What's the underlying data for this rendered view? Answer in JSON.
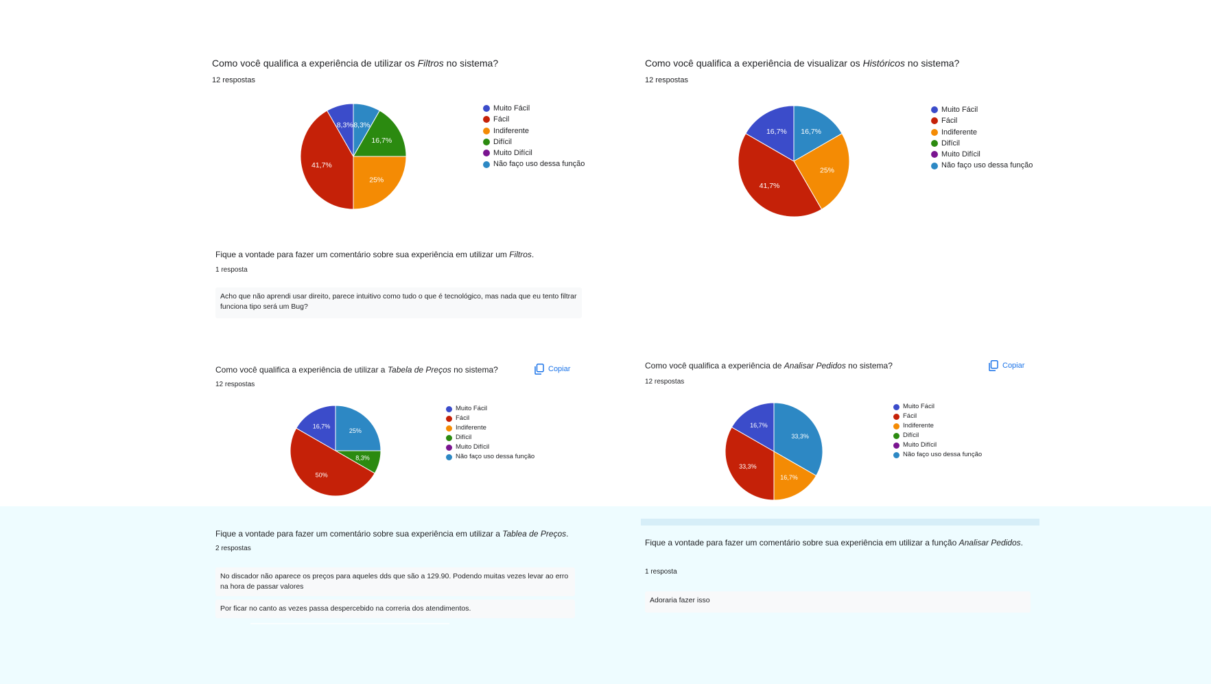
{
  "colors": {
    "muito_facil": "#3b4cca",
    "facil": "#c52108",
    "indiferente": "#f48b04",
    "dificil": "#2b8a10",
    "muito_dificil": "#7a1490",
    "nao_uso": "#2d88c4"
  },
  "legend_labels": [
    "Muito Fácil",
    "Fácil",
    "Indiferente",
    "Difícil",
    "Muito Difícil",
    "Não faço uso dessa função"
  ],
  "copy_label": "Copiar",
  "q1": {
    "pre": "Como você qualifica a experiência de utilizar os ",
    "em": "Filtros",
    "post": " no sistema?",
    "count": "12 respostas"
  },
  "q2": {
    "pre": "Como você qualifica a experiência de visualizar os ",
    "em": "Históricos",
    "post": " no sistema?",
    "count": "12 respostas"
  },
  "q3": {
    "pre": "Como você qualifica a experiência de utilizar a ",
    "em": "Tabela de Preços",
    "post": " no sistema?",
    "count": "12 respostas"
  },
  "q4": {
    "pre": "Como você qualifica a experiência de ",
    "em": "Analisar Pedidos",
    "post": " no sistema?",
    "count": "12 respostas"
  },
  "c1": {
    "pre": "Fique a vontade para fazer um comentário sobre sua experiência em utilizar um ",
    "em": "Filtros",
    "post": ".",
    "count": "1 resposta",
    "responses": [
      "Acho que não aprendi usar direito, parece intuitivo como tudo o que é tecnológico, mas nada que eu tento filtrar funciona tipo será um Bug?"
    ]
  },
  "c3": {
    "pre": "Fique a vontade para fazer um comentário sobre sua experiência em utilizar a ",
    "em": "Tablea de Preços",
    "post": ".",
    "count": "2 respostas",
    "responses": [
      "No discador não aparece os preços para aqueles dds que são a 129.90. Podendo muitas vezes levar ao erro na hora de passar valores",
      "Por ficar no canto as vezes passa despercebido na correria dos atendimentos."
    ]
  },
  "c4": {
    "pre": "Fique a vontade para fazer um comentário sobre sua experiência em utilizar a função ",
    "em": "Analisar Pedidos",
    "post": ".",
    "count": "1 resposta",
    "responses": [
      "Adoraria fazer isso"
    ]
  },
  "chart_data": [
    {
      "type": "pie",
      "title": "Como você qualifica a experiência de utilizar os Filtros no sistema?",
      "categories": [
        "Muito Fácil",
        "Fácil",
        "Indiferente",
        "Difícil",
        "Muito Difícil",
        "Não faço uso dessa função"
      ],
      "values": [
        8.3,
        41.7,
        25,
        16.7,
        0,
        8.3
      ],
      "labels": [
        "8,3%",
        "41,7%",
        "25%",
        "16,7%",
        "",
        "8,3%"
      ],
      "legend": "right"
    },
    {
      "type": "pie",
      "title": "Como você qualifica a experiência de visualizar os Históricos no sistema?",
      "categories": [
        "Muito Fácil",
        "Fácil",
        "Indiferente",
        "Difícil",
        "Muito Difícil",
        "Não faço uso dessa função"
      ],
      "values": [
        16.7,
        41.7,
        25,
        0,
        0,
        16.7
      ],
      "labels": [
        "16,7%",
        "41,7%",
        "25%",
        "",
        "",
        "16,7%"
      ],
      "legend": "right"
    },
    {
      "type": "pie",
      "title": "Como você qualifica a experiência de utilizar a Tabela de Preços no sistema?",
      "categories": [
        "Muito Fácil",
        "Fácil",
        "Indiferente",
        "Difícil",
        "Muito Difícil",
        "Não faço uso dessa função"
      ],
      "values": [
        16.7,
        50,
        0,
        8.3,
        0,
        25
      ],
      "labels": [
        "16,7%",
        "50%",
        "",
        "8,3%",
        "",
        "25%"
      ],
      "legend": "right"
    },
    {
      "type": "pie",
      "title": "Como você qualifica a experiência de Analisar Pedidos no sistema?",
      "categories": [
        "Muito Fácil",
        "Fácil",
        "Indiferente",
        "Difícil",
        "Muito Difícil",
        "Não faço uso dessa função"
      ],
      "values": [
        16.7,
        33.3,
        16.7,
        0,
        0,
        33.3
      ],
      "labels": [
        "16,7%",
        "33,3%",
        "16,7%",
        "",
        "",
        "33,3%"
      ],
      "legend": "right"
    }
  ]
}
